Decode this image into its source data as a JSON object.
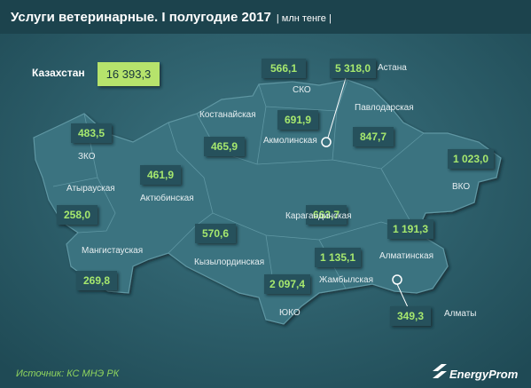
{
  "header": {
    "title": "Услуги ветеринарные. I полугодие 2017",
    "unit": "| млн тенге |"
  },
  "total": {
    "label": "Казахстан",
    "value": "16 393,3"
  },
  "regions": [
    {
      "name": "СКО",
      "value": "566,1"
    },
    {
      "name": "Астана",
      "value": "5 318,0"
    },
    {
      "name": "Павлодарская",
      "value": "847,7"
    },
    {
      "name": "Костанайская",
      "value": "465,9"
    },
    {
      "name": "Акмолинская",
      "value": "691,9"
    },
    {
      "name": "ЗКО",
      "value": "483,5"
    },
    {
      "name": "ВКО",
      "value": "1 023,0"
    },
    {
      "name": "Атырауская",
      "value": "258,0"
    },
    {
      "name": "Актюбинская",
      "value": "461,9"
    },
    {
      "name": "Карагандинская",
      "value": "663,7"
    },
    {
      "name": "Алматинская",
      "value": "1 191,3"
    },
    {
      "name": "Мангистауская",
      "value": "269,8"
    },
    {
      "name": "Кызылординская",
      "value": "570,6"
    },
    {
      "name": "Жамбылская",
      "value": "1 135,1"
    },
    {
      "name": "ЮКО",
      "value": "2 097,4"
    },
    {
      "name": "Алматы",
      "value": "349,3"
    }
  ],
  "source": "Источник: КС МНЭ РК",
  "logo": "EnergyProm"
}
